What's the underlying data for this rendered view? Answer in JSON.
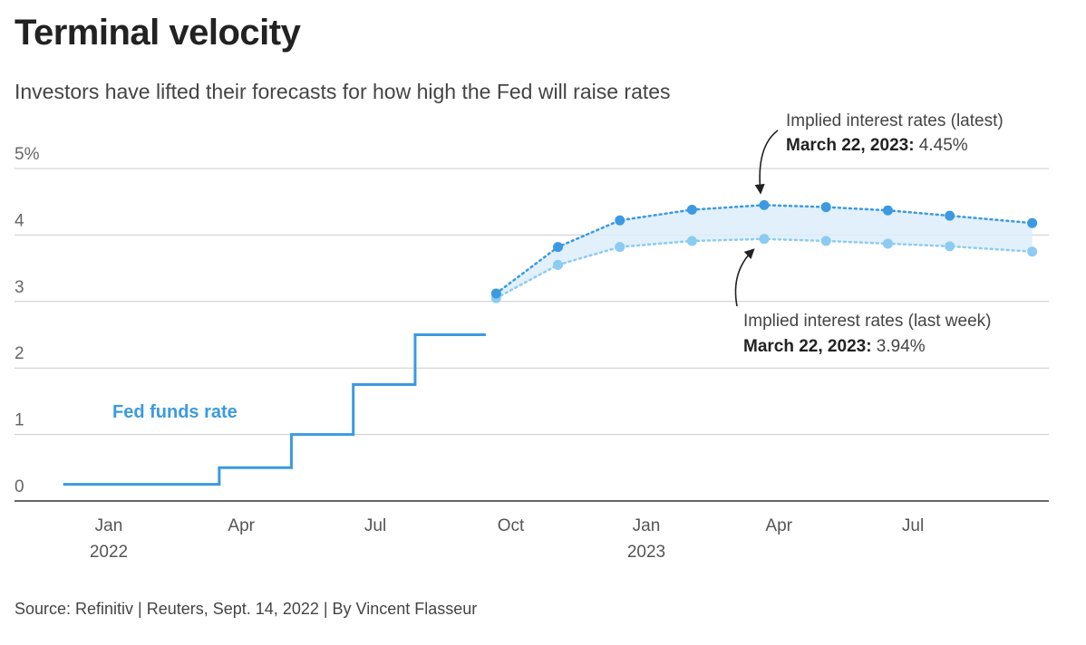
{
  "header": {
    "title": "Terminal velocity",
    "subtitle": "Investors have lifted their forecasts for how high the Fed will raise rates"
  },
  "footer": {
    "source": "Source: Refinitiv | Reuters, Sept. 14, 2022 | By Vincent Flasseur"
  },
  "colors": {
    "fed_funds": "#3b9ae1",
    "latest": "#3b9ae1",
    "last_week": "#8ccbf2",
    "band": "#dcedf9",
    "grid": "#cccccc",
    "axis": "#333333"
  },
  "chart_data": {
    "type": "line",
    "title": "Terminal velocity",
    "subtitle": "Investors have lifted their forecasts for how high the Fed will raise rates",
    "y_ticks": [
      "0",
      "1",
      "2",
      "3",
      "4",
      "5%"
    ],
    "ylim": [
      0,
      5
    ],
    "x_ticks": [
      {
        "date": "2022-01-01",
        "label": "Jan",
        "sublabel": "2022"
      },
      {
        "date": "2022-04-01",
        "label": "Apr",
        "sublabel": ""
      },
      {
        "date": "2022-07-01",
        "label": "Jul",
        "sublabel": ""
      },
      {
        "date": "2022-10-01",
        "label": "Oct",
        "sublabel": ""
      },
      {
        "date": "2023-01-01",
        "label": "Jan",
        "sublabel": "2023"
      },
      {
        "date": "2023-04-01",
        "label": "Apr",
        "sublabel": ""
      },
      {
        "date": "2023-07-01",
        "label": "Jul",
        "sublabel": ""
      }
    ],
    "xlim": [
      "2021-12-01",
      "2023-10-31"
    ],
    "series": [
      {
        "name": "Fed funds rate",
        "style": "step",
        "points": [
          {
            "x": "2021-12-01",
            "y": 0.25
          },
          {
            "x": "2022-03-17",
            "y": 0.5
          },
          {
            "x": "2022-05-05",
            "y": 1.0
          },
          {
            "x": "2022-06-16",
            "y": 1.75
          },
          {
            "x": "2022-07-28",
            "y": 2.5
          },
          {
            "x": "2022-09-14",
            "y": 2.5
          }
        ]
      },
      {
        "name": "Implied interest rates (latest)",
        "style": "dotted",
        "points": [
          {
            "x": "2022-09-21",
            "y": 3.12
          },
          {
            "x": "2022-11-02",
            "y": 3.82
          },
          {
            "x": "2022-12-14",
            "y": 4.22
          },
          {
            "x": "2023-02-01",
            "y": 4.38
          },
          {
            "x": "2023-03-22",
            "y": 4.45
          },
          {
            "x": "2023-05-03",
            "y": 4.42
          },
          {
            "x": "2023-06-14",
            "y": 4.37
          },
          {
            "x": "2023-07-26",
            "y": 4.29
          },
          {
            "x": "2023-09-20",
            "y": 4.18
          }
        ]
      },
      {
        "name": "Implied interest rates (last week)",
        "style": "dotted",
        "points": [
          {
            "x": "2022-09-21",
            "y": 3.05
          },
          {
            "x": "2022-11-02",
            "y": 3.55
          },
          {
            "x": "2022-12-14",
            "y": 3.82
          },
          {
            "x": "2023-02-01",
            "y": 3.91
          },
          {
            "x": "2023-03-22",
            "y": 3.94
          },
          {
            "x": "2023-05-03",
            "y": 3.91
          },
          {
            "x": "2023-06-14",
            "y": 3.87
          },
          {
            "x": "2023-07-26",
            "y": 3.83
          },
          {
            "x": "2023-09-20",
            "y": 3.75
          }
        ]
      }
    ],
    "series_label": "Fed funds rate",
    "annotations": [
      {
        "id": "latest",
        "line1": "Implied interest rates (latest)",
        "bold": "March 22, 2023:",
        "value": "4.45%",
        "target": {
          "x": "2023-03-22",
          "y": 4.45
        }
      },
      {
        "id": "last_week",
        "line1": "Implied interest rates (last week)",
        "bold": "March 22, 2023:",
        "value": "3.94%",
        "target": {
          "x": "2023-03-22",
          "y": 3.94
        }
      }
    ],
    "grid": true
  }
}
